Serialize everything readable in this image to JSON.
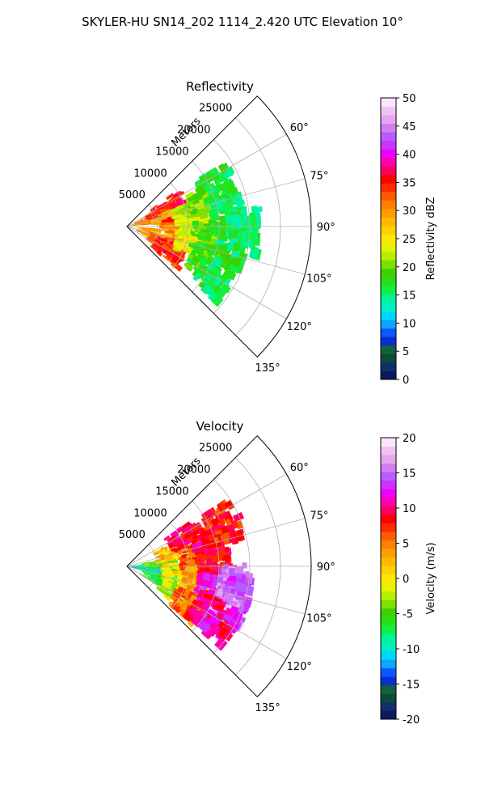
{
  "figure": {
    "title": "SKYLER-HU  SN14_202  1114_2.420 UTC Elevation 10°"
  },
  "chart_data": [
    {
      "type": "heatmap",
      "subtype": "polar-sector",
      "title": "Reflectivity",
      "range_label": "Meters",
      "range_ticks": [
        5000,
        10000,
        15000,
        20000,
        25000
      ],
      "range_max": 30000,
      "azimuth_range_deg": [
        45,
        135
      ],
      "azimuth_ticks_deg": [
        60,
        75,
        90,
        105,
        120,
        135
      ],
      "azimuth_tick_labels": [
        "60°",
        "75°",
        "90°",
        "105°",
        "120°",
        "135°"
      ],
      "grid": true,
      "colorbar": {
        "label": "Reflectivity dBZ",
        "min": 0,
        "max": 50,
        "ticks": [
          0,
          5,
          10,
          15,
          20,
          25,
          30,
          35,
          40,
          45,
          50
        ],
        "colors": [
          "#0b1a5e",
          "#10306a",
          "#0d4a3a",
          "#11633a",
          "#0a2fd0",
          "#0a58ff",
          "#0aa6ff",
          "#00d5ff",
          "#00f0c0",
          "#00f29a",
          "#10f040",
          "#28e018",
          "#3fd000",
          "#7ee000",
          "#b6ef00",
          "#e4f300",
          "#ffe800",
          "#ffd000",
          "#ffb800",
          "#ff9d00",
          "#ff7f00",
          "#ff5a00",
          "#ff2a00",
          "#ff0000",
          "#ff0060",
          "#ff00b0",
          "#f000ff",
          "#cc33ff",
          "#b85cff",
          "#d47cf2",
          "#e6a6ef",
          "#f0c4f2",
          "#fbe6fb"
        ]
      },
      "clusters": [
        {
          "r": 3200,
          "az": 72,
          "value": 30
        },
        {
          "r": 5500,
          "az": 68,
          "value": 33
        },
        {
          "r": 7000,
          "az": 63,
          "value": 35
        },
        {
          "r": 6500,
          "az": 78,
          "value": 28
        },
        {
          "r": 7800,
          "az": 86,
          "value": 33
        },
        {
          "r": 8500,
          "az": 97,
          "value": 30
        },
        {
          "r": 4200,
          "az": 103,
          "value": 29
        },
        {
          "r": 6000,
          "az": 113,
          "value": 32
        },
        {
          "r": 7500,
          "az": 118,
          "value": 35
        },
        {
          "r": 10000,
          "az": 78,
          "value": 22
        },
        {
          "r": 11000,
          "az": 90,
          "value": 23
        },
        {
          "r": 10500,
          "az": 104,
          "value": 24
        },
        {
          "r": 12500,
          "az": 70,
          "value": 20
        },
        {
          "r": 13000,
          "az": 95,
          "value": 19
        },
        {
          "r": 13500,
          "az": 112,
          "value": 18
        },
        {
          "r": 15500,
          "az": 65,
          "value": 17
        },
        {
          "r": 16000,
          "az": 82,
          "value": 16
        },
        {
          "r": 16500,
          "az": 100,
          "value": 17
        },
        {
          "r": 16000,
          "az": 118,
          "value": 16
        },
        {
          "r": 18500,
          "az": 90,
          "value": 15
        }
      ]
    },
    {
      "type": "heatmap",
      "subtype": "polar-sector",
      "title": "Velocity",
      "range_label": "Meters",
      "range_ticks": [
        5000,
        10000,
        15000,
        20000,
        25000
      ],
      "range_max": 30000,
      "azimuth_range_deg": [
        45,
        135
      ],
      "azimuth_ticks_deg": [
        60,
        75,
        90,
        105,
        120,
        135
      ],
      "azimuth_tick_labels": [
        "60°",
        "75°",
        "90°",
        "105°",
        "120°",
        "135°"
      ],
      "grid": true,
      "colorbar": {
        "label": "Velocity (m/s)",
        "min": -20,
        "max": 20,
        "ticks": [
          -20,
          -15,
          -10,
          -5,
          0,
          5,
          10,
          15,
          20
        ],
        "colors": [
          "#0b1a5e",
          "#10306a",
          "#0d4a3a",
          "#11633a",
          "#0a2fd0",
          "#0a58ff",
          "#0aa6ff",
          "#00d5ff",
          "#00f0c0",
          "#00f29a",
          "#10f040",
          "#28e018",
          "#3fd000",
          "#7ee000",
          "#b6ef00",
          "#e4f300",
          "#ffe800",
          "#ffd000",
          "#ffb800",
          "#ff9d00",
          "#ff7f00",
          "#ff5a00",
          "#ff2a00",
          "#ff0000",
          "#ff0060",
          "#ff00b0",
          "#f000ff",
          "#cc33ff",
          "#b85cff",
          "#d47cf2",
          "#e6a6ef",
          "#f0c4f2",
          "#fbe6fb"
        ]
      },
      "clusters": [
        {
          "r": 2500,
          "az": 92,
          "value": -10
        },
        {
          "r": 4500,
          "az": 85,
          "value": -5
        },
        {
          "r": 5000,
          "az": 110,
          "value": -6
        },
        {
          "r": 7000,
          "az": 70,
          "value": 2
        },
        {
          "r": 8000,
          "az": 95,
          "value": 0
        },
        {
          "r": 8500,
          "az": 115,
          "value": -2
        },
        {
          "r": 10000,
          "az": 63,
          "value": 9
        },
        {
          "r": 11000,
          "az": 80,
          "value": 6
        },
        {
          "r": 11500,
          "az": 100,
          "value": 3
        },
        {
          "r": 11000,
          "az": 120,
          "value": 5
        },
        {
          "r": 13500,
          "az": 72,
          "value": 10
        },
        {
          "r": 14000,
          "az": 88,
          "value": 9
        },
        {
          "r": 14000,
          "az": 105,
          "value": 12
        },
        {
          "r": 14500,
          "az": 117,
          "value": 10
        },
        {
          "r": 16500,
          "az": 65,
          "value": 8
        },
        {
          "r": 17500,
          "az": 98,
          "value": 15
        },
        {
          "r": 17500,
          "az": 108,
          "value": 16
        },
        {
          "r": 17000,
          "az": 118,
          "value": 11
        }
      ]
    }
  ]
}
